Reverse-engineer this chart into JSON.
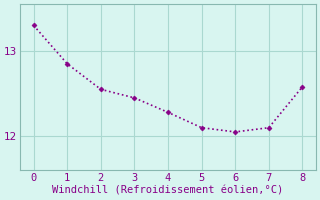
{
  "x": [
    0,
    1,
    2,
    3,
    4,
    5,
    6,
    7,
    8
  ],
  "y": [
    13.3,
    12.85,
    12.55,
    12.45,
    12.28,
    12.1,
    12.05,
    12.1,
    12.58
  ],
  "line_color": "#880088",
  "marker": "D",
  "marker_size": 2.5,
  "bg_color": "#d8f5f0",
  "grid_color": "#aad8d0",
  "xlabel": "Windchill (Refroidissement éolien,°C)",
  "xlabel_color": "#880088",
  "xlabel_fontsize": 7.5,
  "tick_color": "#880088",
  "tick_fontsize": 7.5,
  "ylim": [
    11.6,
    13.55
  ],
  "xlim": [
    -0.4,
    8.4
  ],
  "yticks": [
    12,
    13
  ],
  "xticks": [
    0,
    1,
    2,
    3,
    4,
    5,
    6,
    7,
    8
  ],
  "spine_color": "#88b8b0"
}
